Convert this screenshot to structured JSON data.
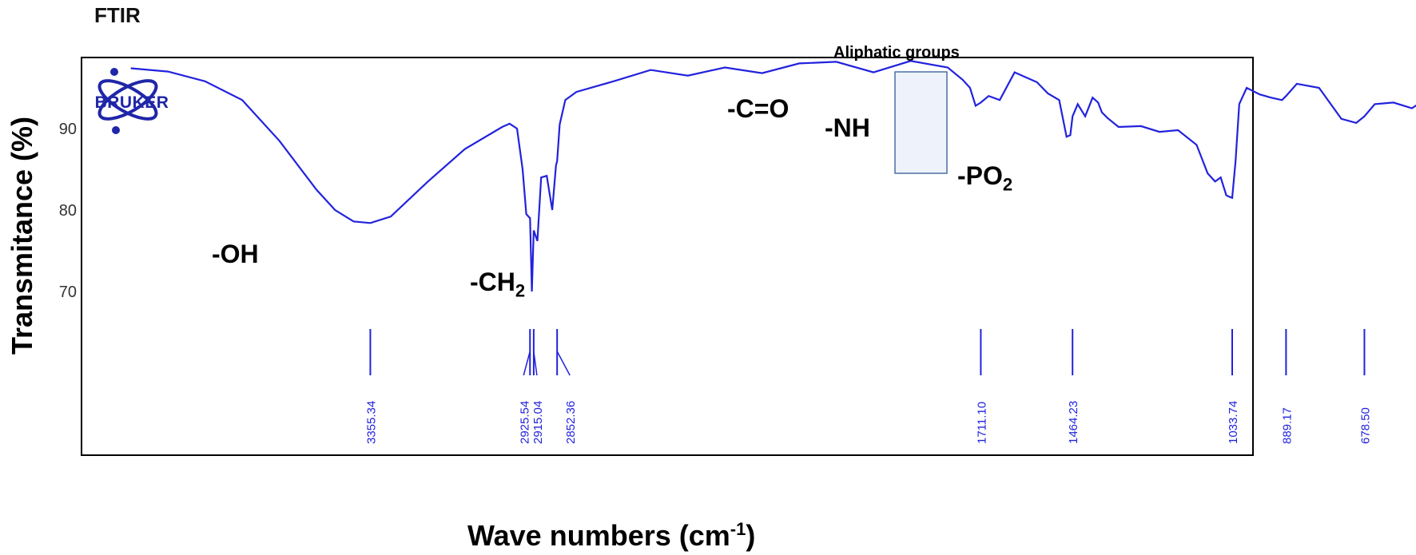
{
  "chart_data": {
    "type": "line",
    "title": "FTIR",
    "xlabel": "Wave numbers (cm",
    "xlabel_sup": "-1",
    "xlabel_end": ")",
    "ylabel": "Transmitance (%)",
    "ylim": [
      56,
      98
    ],
    "yticks": [
      "70",
      "80",
      "90"
    ],
    "x_reversed": true,
    "series": [
      {
        "color": "#2222dd",
        "x": [
          4000,
          3900,
          3800,
          3700,
          3600,
          3500,
          3450,
          3400,
          3355,
          3300,
          3200,
          3100,
          3000,
          2980,
          2960,
          2945,
          2935,
          2925,
          2920,
          2915,
          2905,
          2895,
          2880,
          2865,
          2855,
          2852,
          2845,
          2830,
          2800,
          2700,
          2600,
          2500,
          2400,
          2300,
          2200,
          2100,
          2000,
          1900,
          1800,
          1760,
          1740,
          1725,
          1711,
          1690,
          1660,
          1620,
          1590,
          1560,
          1530,
          1500,
          1480,
          1470,
          1464,
          1450,
          1430,
          1410,
          1395,
          1385,
          1370,
          1340,
          1280,
          1230,
          1180,
          1130,
          1100,
          1080,
          1065,
          1050,
          1040,
          1034,
          1025,
          1015,
          995,
          960,
          930,
          900,
          889,
          860,
          800,
          740,
          700,
          678,
          650,
          600,
          550,
          500,
          460,
          420
        ],
        "y": [
          97.4,
          97.0,
          95.8,
          93.5,
          88.5,
          82.5,
          80.0,
          78.6,
          78.4,
          79.2,
          83.5,
          87.5,
          90.2,
          90.6,
          90.0,
          85.0,
          79.5,
          79.0,
          70.0,
          77.5,
          76.2,
          84.0,
          84.2,
          80.0,
          85.5,
          86.0,
          90.5,
          93.5,
          94.5,
          95.8,
          97.2,
          96.5,
          97.5,
          96.8,
          98.0,
          98.2,
          96.9,
          98.3,
          97.5,
          96.0,
          95.0,
          92.8,
          93.2,
          94.0,
          93.5,
          96.9,
          96.3,
          95.7,
          94.3,
          93.5,
          89.0,
          89.2,
          91.5,
          93.0,
          91.5,
          93.8,
          93.2,
          92.0,
          91.3,
          90.2,
          90.3,
          89.6,
          89.8,
          88.0,
          84.5,
          83.5,
          84.0,
          81.8,
          81.6,
          81.5,
          86.0,
          93.0,
          95.0,
          94.2,
          93.8,
          93.5,
          94.0,
          95.5,
          95.0,
          91.2,
          90.7,
          91.5,
          93.0,
          93.2,
          92.5,
          94.0,
          95.2,
          96.5
        ]
      }
    ],
    "peaks": [
      {
        "label": "3355.34",
        "x": 3355
      },
      {
        "label": "2925.54",
        "x": 2925
      },
      {
        "label": "2915.04",
        "x": 2915
      },
      {
        "label": "2852.36",
        "x": 2852
      },
      {
        "label": "1711.10",
        "x": 1711
      },
      {
        "label": "1464.23",
        "x": 1464
      },
      {
        "label": "1033.74",
        "x": 1034
      },
      {
        "label": "889.17",
        "x": 889
      },
      {
        "label": "678.50",
        "x": 678
      }
    ],
    "peak_color": "#2222dd",
    "annotations": [
      {
        "text": "-OH",
        "sub": ""
      },
      {
        "text": "-CH",
        "sub": "2"
      },
      {
        "text": "-C=O",
        "sub": ""
      },
      {
        "text": "-NH",
        "sub": ""
      },
      {
        "text": "-PO",
        "sub": "2"
      }
    ],
    "highlight_box_label": "Aliphatic  groups",
    "logo_text": "BRUKER"
  }
}
